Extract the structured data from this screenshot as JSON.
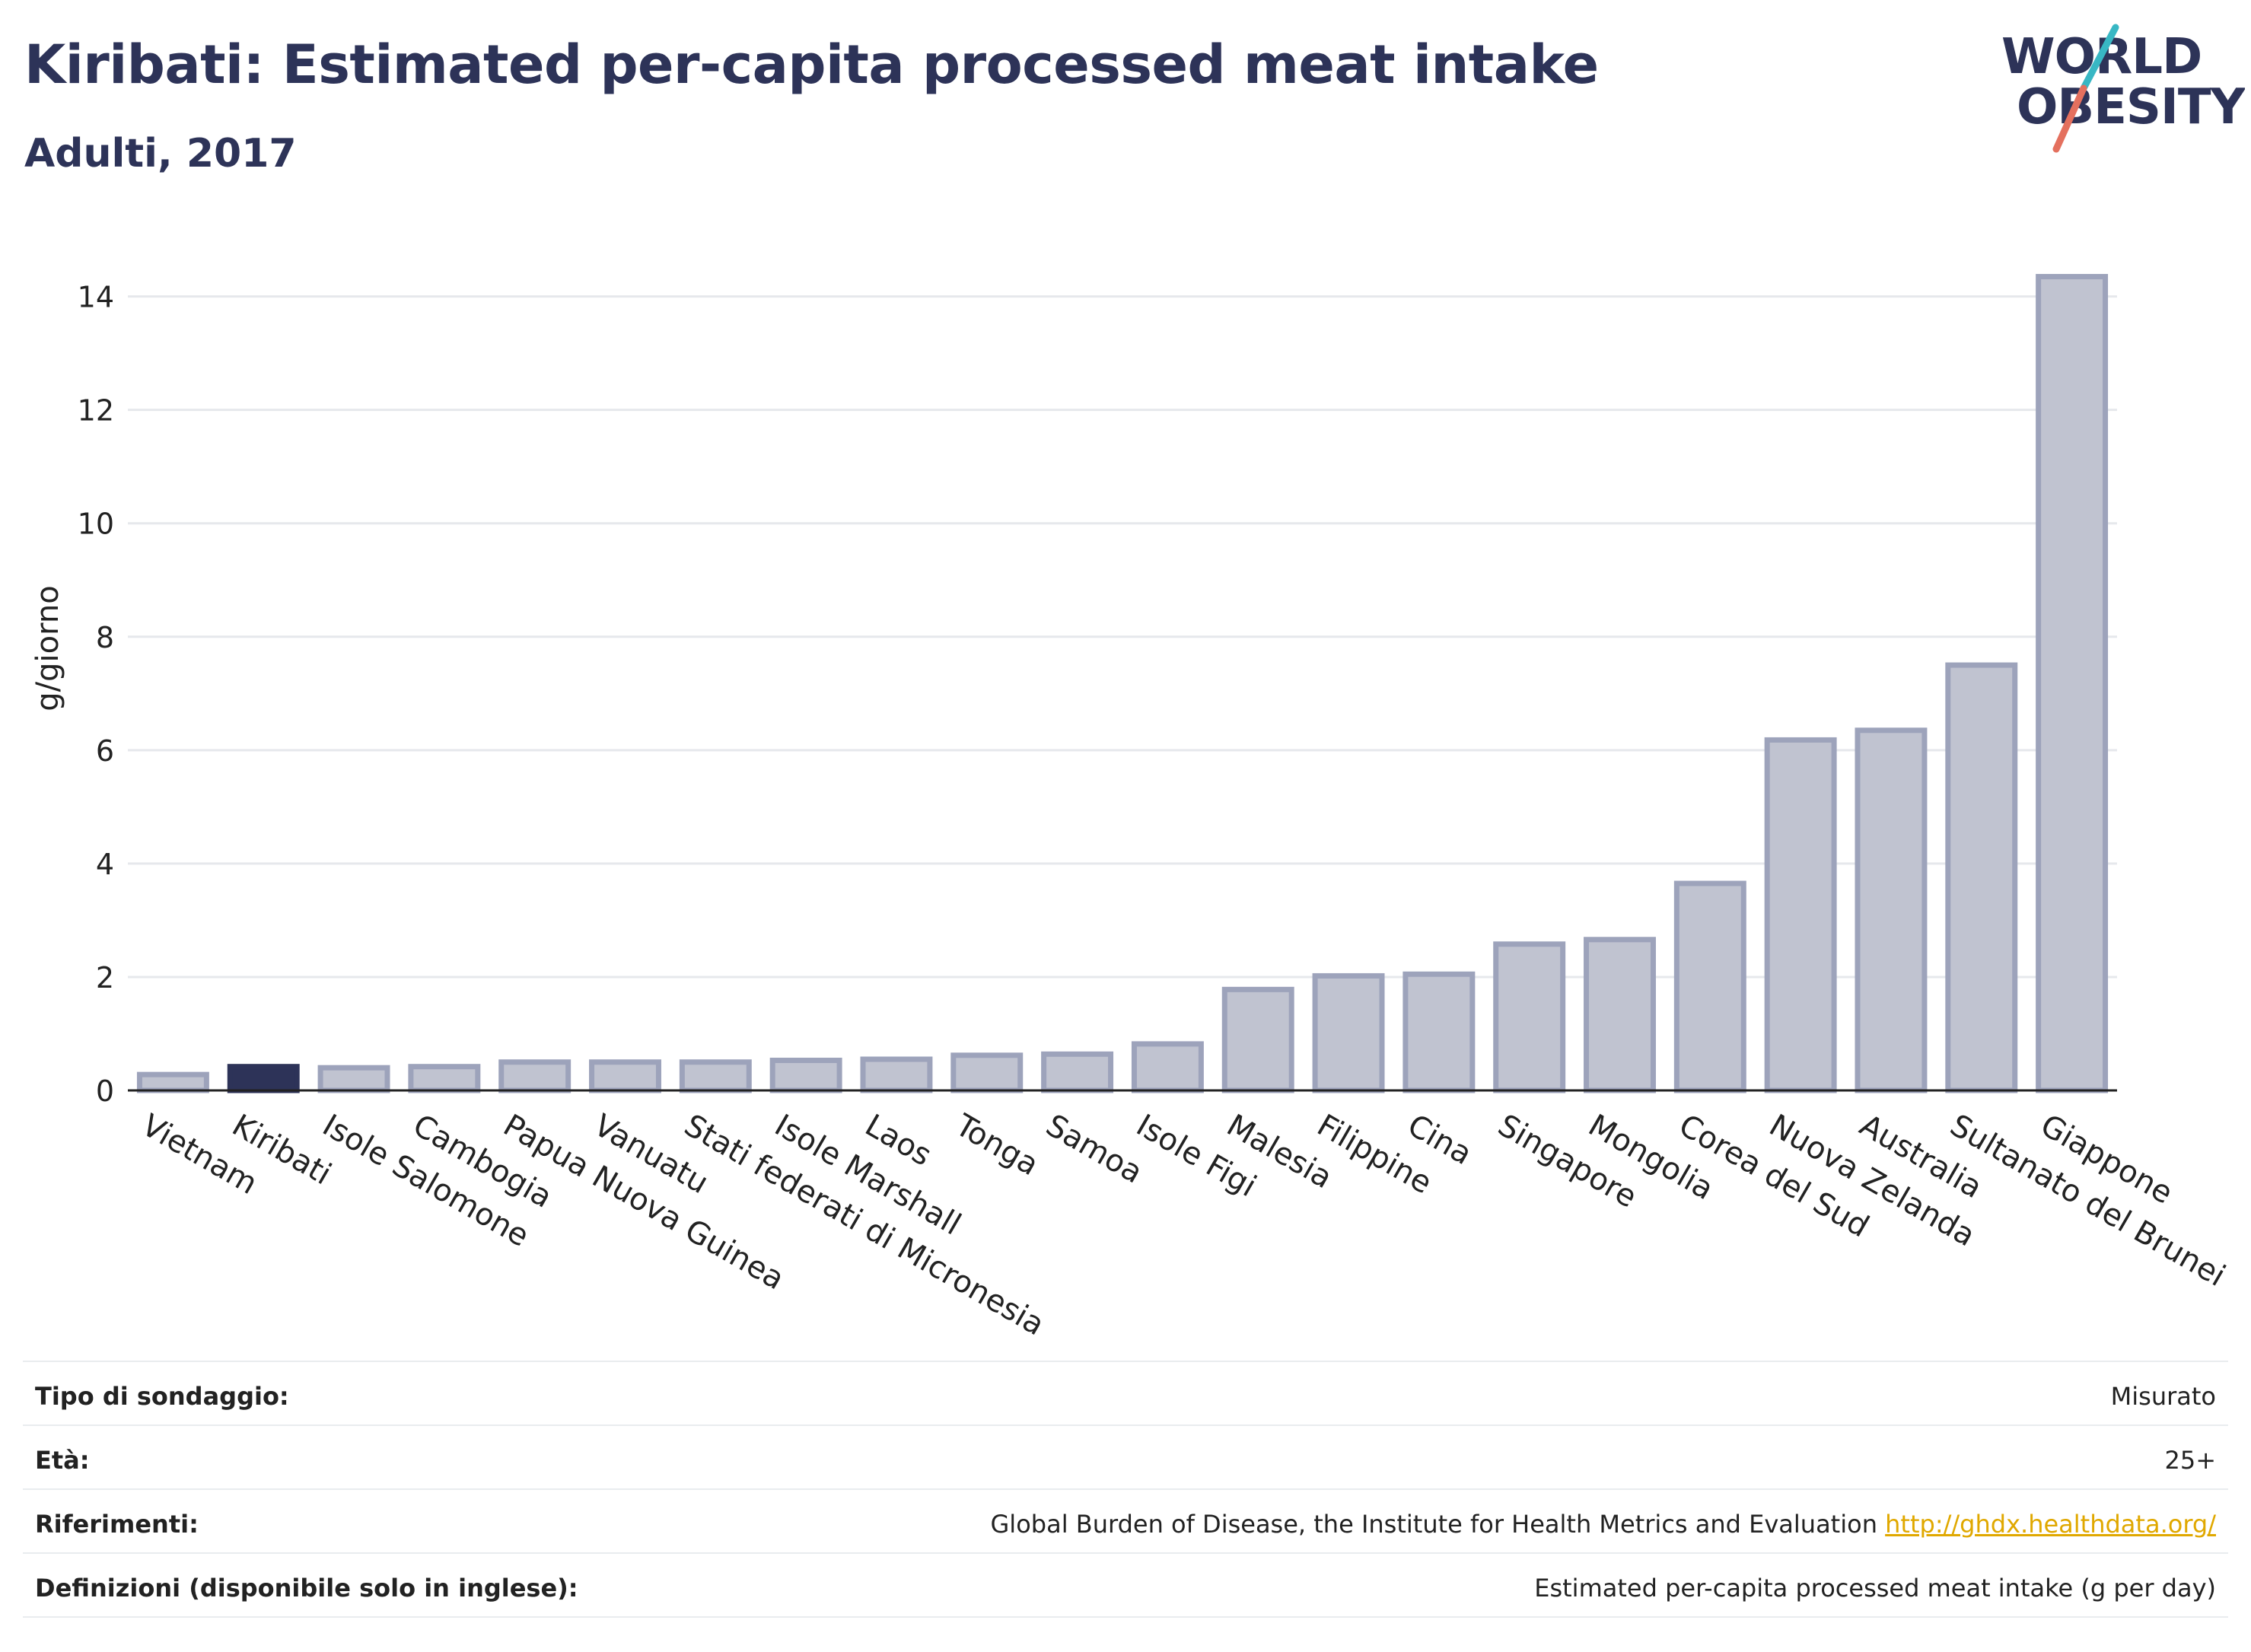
{
  "header": {
    "title": "Kiribati: Estimated per-capita processed meat intake",
    "subtitle": "Adulti, 2017"
  },
  "logo": {
    "line1": "WORLD",
    "line2": "OBESITY"
  },
  "colors": {
    "highlight": "#2d3358",
    "bar_fill": "#c0c3d0",
    "bar_stroke": "#9da3bb",
    "grid": "#e6e8ec",
    "text": "#2d3358",
    "link": "#e0a800",
    "logo_teal": "#38b7c4",
    "logo_coral": "#e4705e"
  },
  "chart_data": {
    "type": "bar",
    "ylabel": "g/giorno",
    "ylim": [
      0,
      14.8
    ],
    "yticks": [
      0,
      2,
      4,
      6,
      8,
      10,
      12,
      14
    ],
    "grid": true,
    "highlight": "Kiribati",
    "categories": [
      "Vietnam",
      "Kiribati",
      "Isole Salomone",
      "Cambogia",
      "Papua Nuova Guinea",
      "Vanuatu",
      "Stati federati di Micronesia",
      "Isole Marshall",
      "Laos",
      "Tonga",
      "Samoa",
      "Isole Figi",
      "Malesia",
      "Filippine",
      "Cina",
      "Singapore",
      "Mongolia",
      "Corea del Sud",
      "Nuova Zelanda",
      "Australia",
      "Sultanato del Brunei",
      "Giappone"
    ],
    "values": [
      0.28,
      0.42,
      0.4,
      0.42,
      0.5,
      0.5,
      0.5,
      0.53,
      0.55,
      0.62,
      0.64,
      0.82,
      1.78,
      2.02,
      2.05,
      2.58,
      2.66,
      3.65,
      6.18,
      6.35,
      7.5,
      14.35
    ]
  },
  "meta": [
    {
      "key": "Tipo di sondaggio:",
      "value": "Misurato"
    },
    {
      "key": "Età:",
      "value": "25+"
    },
    {
      "key": "Riferimenti:",
      "value": "Global Burden of Disease, the Institute for Health Metrics and Evaluation",
      "link": "http://ghdx.healthdata.org/"
    },
    {
      "key": "Definizioni (disponibile solo in inglese):",
      "value": "Estimated per-capita processed meat intake (g per day)"
    }
  ]
}
